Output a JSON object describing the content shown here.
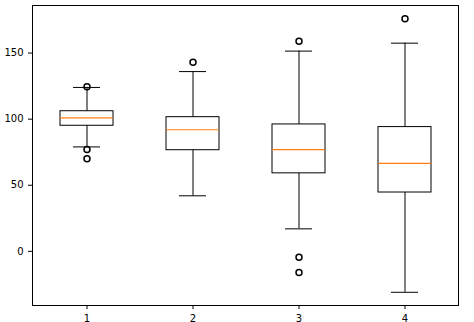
{
  "chart_data": {
    "type": "box",
    "categories": [
      "1",
      "2",
      "3",
      "4"
    ],
    "boxes": [
      {
        "whisker_low": 79,
        "q1": 95,
        "median": 101,
        "q3": 106,
        "whisker_high": 124,
        "outliers": [
          124.5,
          77,
          70
        ]
      },
      {
        "whisker_low": 42,
        "q1": 76.5,
        "median": 92,
        "q3": 101.5,
        "whisker_high": 136,
        "outliers": [
          143
        ]
      },
      {
        "whisker_low": 17,
        "q1": 59,
        "median": 77,
        "q3": 96,
        "whisker_high": 151.5,
        "outliers": [
          159,
          -4.5,
          -16
        ]
      },
      {
        "whisker_low": -31,
        "q1": 44.5,
        "median": 66.5,
        "q3": 94,
        "whisker_high": 157.5,
        "outliers": [
          176
        ]
      }
    ],
    "ylim": [
      -41,
      186
    ],
    "yticks": [
      0,
      50,
      100,
      150
    ]
  }
}
